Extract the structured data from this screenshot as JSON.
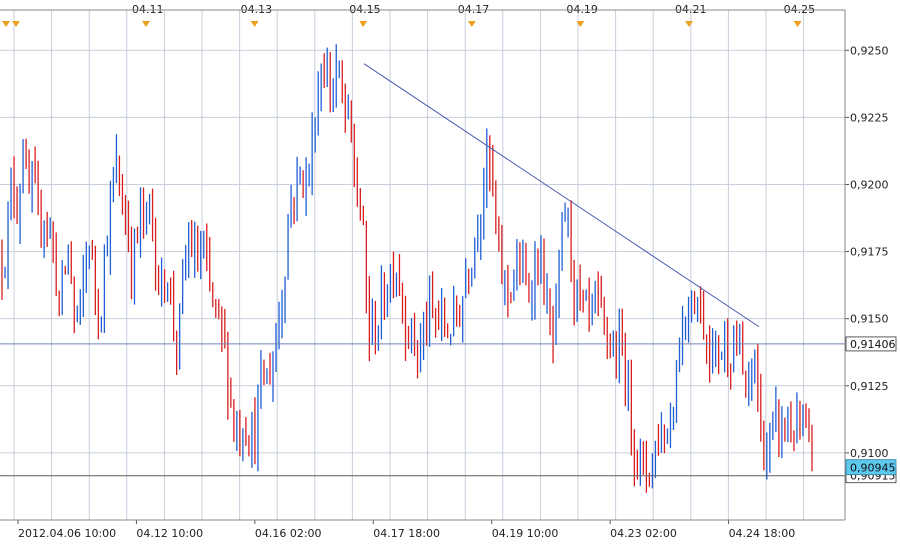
{
  "chart_data": {
    "type": "candlestick",
    "ylim": [
      0.9075,
      0.9265
    ],
    "up_color": "#1f5fd6",
    "down_color": "#d81e1e",
    "grid_color": "#c8cfdd",
    "border_color": "#8a8a8a",
    "y_ticks": [
      {
        "value": 0.91,
        "label": "0,9100"
      },
      {
        "value": 0.9125,
        "label": "0,9125"
      },
      {
        "value": 0.915,
        "label": "0,9150"
      },
      {
        "value": 0.9175,
        "label": "0,9175"
      },
      {
        "value": 0.92,
        "label": "0,9200"
      },
      {
        "value": 0.9225,
        "label": "0,9225"
      },
      {
        "value": 0.925,
        "label": "0,9250"
      }
    ],
    "x_ticks": [
      "2012.04.06 10:00",
      "04.12 10:00",
      "04.16 02:00",
      "04.17 18:00",
      "04.19 10:00",
      "04.23 02:00",
      "04.24 18:00"
    ],
    "top_date_labels": [
      "04.11",
      "04.13",
      "04.15",
      "04.17",
      "04.19",
      "04.21",
      "04.25"
    ],
    "horizontal_lines": [
      {
        "value": 0.91406,
        "label": "0,91406",
        "tag_color": "#ffffff",
        "line_color": "#6d82b8"
      },
      {
        "value": 0.90915,
        "label": "0,90915",
        "tag_color": "#ffffff",
        "line_color": "#5a5a5a"
      }
    ],
    "current_price": {
      "value": 0.90945,
      "label": "0,90945",
      "tag_color": "#5ec8ee"
    },
    "trendline": {
      "start": 0.9245,
      "end": 0.9147,
      "color": "#4a58b5"
    },
    "price_path": [
      [
        0.9172,
        0.918,
        0.9205,
        0.919,
        0.9215,
        0.9195,
        0.92,
        0.9185,
        0.919,
        0.9185
      ],
      [
        0.9175,
        0.9155,
        0.9165,
        0.9178,
        0.915,
        0.915,
        0.9168,
        0.918,
        0.916,
        0.9152
      ],
      [
        0.9175,
        0.919,
        0.9208,
        0.9195,
        0.9188,
        0.917,
        0.9178,
        0.919,
        0.9185,
        0.9192
      ],
      [
        0.9165,
        0.916,
        0.917,
        0.915,
        0.914,
        0.916,
        0.918,
        0.9175,
        0.917,
        0.9178
      ],
      [
        0.916,
        0.9155,
        0.9148,
        0.914,
        0.9125,
        0.911,
        0.9108,
        0.9112,
        0.9108,
        0.9105
      ],
      [
        0.9125,
        0.9128,
        0.913,
        0.914,
        0.9155,
        0.9175,
        0.9195,
        0.9198,
        0.9205,
        0.92
      ],
      [
        0.9212,
        0.9232,
        0.9245,
        0.924,
        0.9235,
        0.9245,
        0.9228,
        0.9225,
        0.921,
        0.9195
      ],
      [
        0.918,
        0.9145,
        0.9145,
        0.915,
        0.9158,
        0.9165,
        0.9172,
        0.9165,
        0.915,
        0.9145
      ],
      [
        0.914,
        0.9138,
        0.9148,
        0.9152,
        0.915,
        0.915,
        0.9145,
        0.9148,
        0.915,
        0.9155
      ],
      [
        0.9168,
        0.9175,
        0.9185,
        0.9195,
        0.921,
        0.92,
        0.9175,
        0.9165,
        0.916,
        0.9165
      ],
      [
        0.917,
        0.9165,
        0.916,
        0.9168,
        0.9172,
        0.9165,
        0.9145,
        0.914,
        0.9168,
        0.9192
      ],
      [
        0.918,
        0.916,
        0.9155,
        0.915,
        0.915,
        0.9155,
        0.915,
        0.9145,
        0.914,
        0.9135
      ],
      [
        0.914,
        0.913,
        0.911,
        0.91,
        0.9095,
        0.9092,
        0.9098,
        0.9105,
        0.911,
        0.9105
      ],
      [
        0.912,
        0.9135,
        0.915,
        0.9155,
        0.916,
        0.9155,
        0.9148,
        0.914,
        0.9135,
        0.914
      ],
      [
        0.914,
        0.9138,
        0.9142,
        0.9135,
        0.9125,
        0.912,
        0.914,
        0.9105,
        0.91,
        0.9105
      ],
      [
        0.911,
        0.9108,
        0.9112,
        0.9108,
        0.911,
        0.9108,
        0.9105,
        0.9094
      ]
    ]
  }
}
